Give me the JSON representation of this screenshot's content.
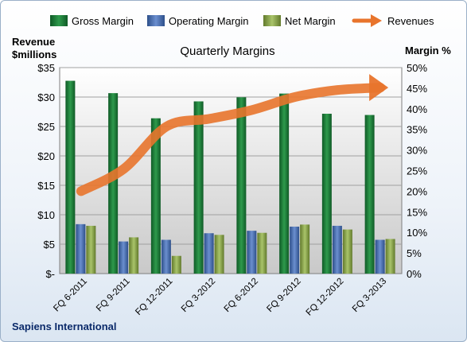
{
  "chart_data": {
    "type": "bar",
    "title": "Quarterly Margins",
    "left_axis_title": [
      "Revenue",
      "$millions"
    ],
    "right_axis_title": "Margin %",
    "source": "Sapiens International",
    "categories": [
      "FQ 6-2011",
      "FQ 9-2011",
      "FQ 12-2011",
      "FQ 3-2012",
      "FQ 6-2012",
      "FQ 9-2012",
      "FQ 12-2012",
      "FQ 3-2013"
    ],
    "left_ticks": [
      "$-",
      "$5",
      "$10",
      "$15",
      "$20",
      "$25",
      "$30",
      "$35"
    ],
    "right_ticks": [
      "0%",
      "5%",
      "10%",
      "15%",
      "20%",
      "25%",
      "30%",
      "35%",
      "40%",
      "45%",
      "50%"
    ],
    "left_ylim": [
      0,
      35
    ],
    "right_ylim": [
      0,
      50
    ],
    "legend_position": "top",
    "series": [
      {
        "name": "Gross Margin",
        "axis": "right",
        "kind": "bar",
        "color": "#1f7a3c",
        "values": [
          46.8,
          43.8,
          37.7,
          41.8,
          42.8,
          43.7,
          38.8,
          38.5
        ]
      },
      {
        "name": "Operating Margin",
        "axis": "right",
        "kind": "bar",
        "color": "#4a6fb0",
        "values": [
          12.0,
          7.8,
          8.2,
          9.8,
          10.4,
          11.4,
          11.6,
          8.2
        ]
      },
      {
        "name": "Net Margin",
        "axis": "right",
        "kind": "bar",
        "color": "#8aa84a",
        "values": [
          11.6,
          8.8,
          4.3,
          9.4,
          9.9,
          11.9,
          10.7,
          8.4
        ]
      },
      {
        "name": "Revenues",
        "axis": "left",
        "kind": "line",
        "color": "#e8742c",
        "values": [
          14.0,
          17.8,
          25.0,
          26.3,
          27.8,
          30.0,
          31.2,
          31.6
        ]
      }
    ]
  }
}
